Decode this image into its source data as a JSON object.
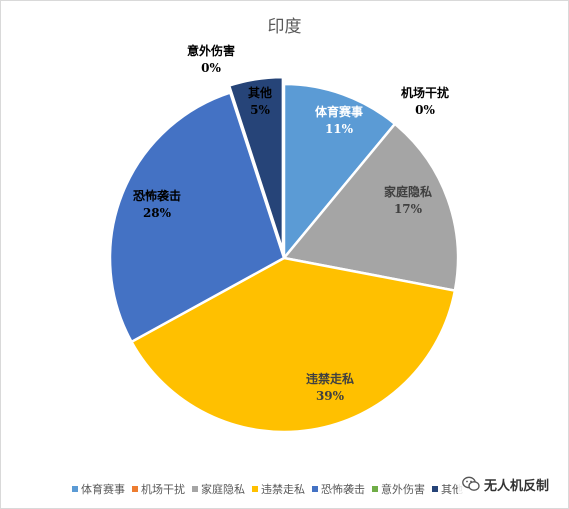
{
  "chart_data": {
    "type": "pie",
    "title": "印度",
    "slices": [
      {
        "label": "体育赛事",
        "value": 11,
        "display": "11%",
        "color": "#5b9bd5"
      },
      {
        "label": "机场干扰",
        "value": 0,
        "display": "0%",
        "color": "#ed7d31"
      },
      {
        "label": "家庭隐私",
        "value": 17,
        "display": "17%",
        "color": "#a5a5a5"
      },
      {
        "label": "违禁走私",
        "value": 39,
        "display": "39%",
        "color": "#ffc000"
      },
      {
        "label": "恐怖袭击",
        "value": 28,
        "display": "28%",
        "color": "#4472c4"
      },
      {
        "label": "意外伤害",
        "value": 0,
        "display": "0%",
        "color": "#70ad47"
      },
      {
        "label": "其他",
        "value": 5,
        "display": "5%",
        "color": "#264478"
      }
    ],
    "legend_position": "bottom"
  },
  "watermark": {
    "text": "无人机反制",
    "icon": "wechat-icon"
  }
}
